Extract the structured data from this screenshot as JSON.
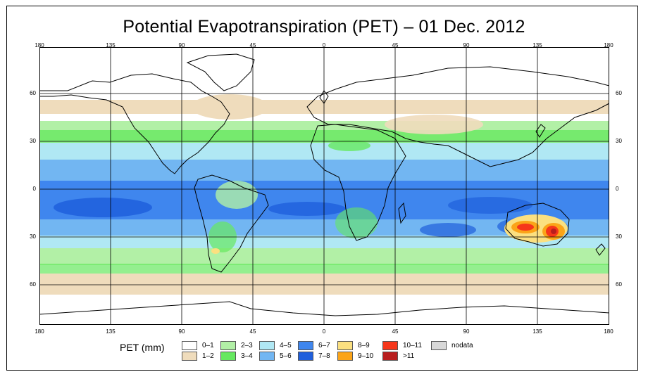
{
  "title": "Potential Evapotranspiration (PET) – 01 Dec. 2012",
  "longitude_ticks": [
    "180",
    "135",
    "90",
    "45",
    "0",
    "45",
    "90",
    "135",
    "180"
  ],
  "latitude_ticks": [
    "60",
    "30",
    "0",
    "30",
    "60"
  ],
  "legend": {
    "title": "PET (mm)",
    "items": [
      {
        "label": "0–1",
        "color": "#ffffff"
      },
      {
        "label": "1–2",
        "color": "#efdcbc"
      },
      {
        "label": "2–3",
        "color": "#b2f0a6"
      },
      {
        "label": "3–4",
        "color": "#66e860"
      },
      {
        "label": "4–5",
        "color": "#b0e8f4"
      },
      {
        "label": "5–6",
        "color": "#72b6f2"
      },
      {
        "label": "6–7",
        "color": "#3f86ee"
      },
      {
        "label": "7–8",
        "color": "#1f5fdc"
      },
      {
        "label": "8–9",
        "color": "#fbe080"
      },
      {
        "label": "9–10",
        "color": "#fba418"
      },
      {
        "label": "10–11",
        "color": "#f6361a"
      },
      {
        "label": ">11",
        "color": "#b81e1e"
      },
      {
        "label": "nodata",
        "color": "#d8d8d8"
      }
    ]
  }
}
